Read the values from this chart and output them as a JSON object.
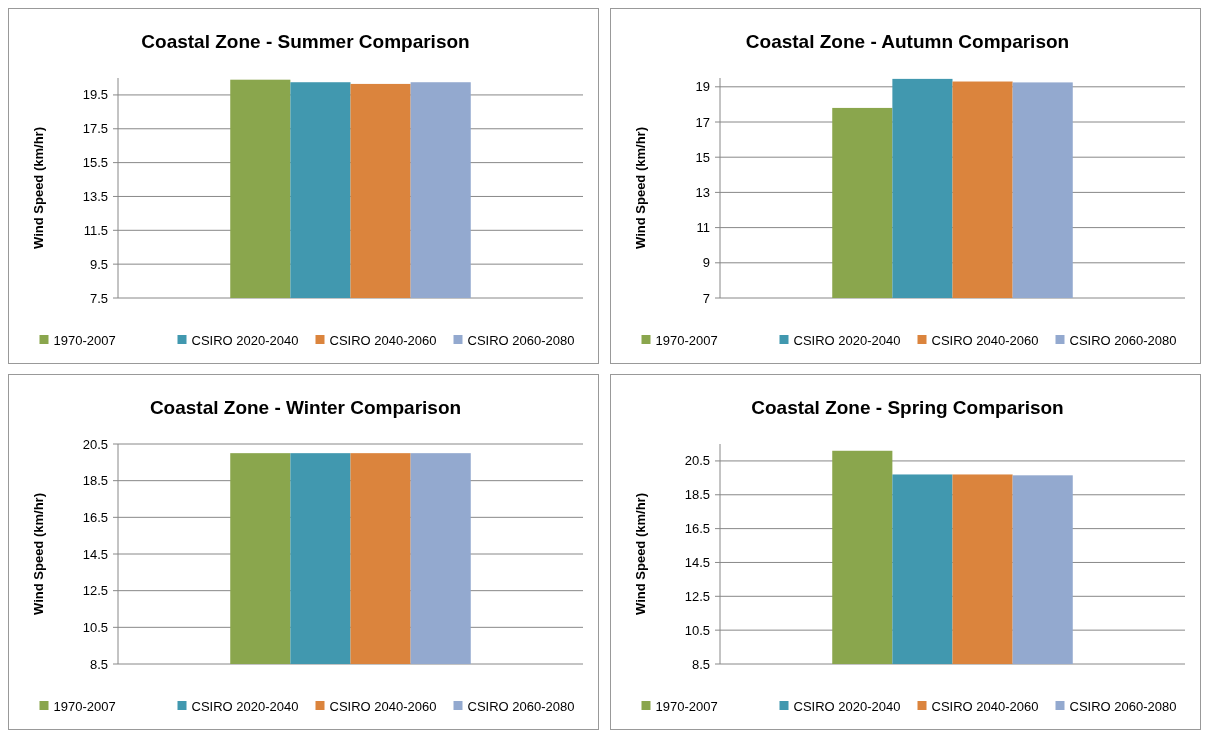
{
  "chart_data": [
    {
      "type": "bar",
      "title": "Coastal Zone - Summer Comparison",
      "ylabel": "Wind Speed (km/hr)",
      "categories": [
        null
      ],
      "series": [
        {
          "name": "1970-2007",
          "color": "#8aa64d",
          "values": [
            20.4
          ]
        },
        {
          "name": "CSIRO 2020-2040",
          "color": "#4198af",
          "values": [
            20.25
          ]
        },
        {
          "name": "CSIRO 2040-2060",
          "color": "#db843d",
          "values": [
            20.15
          ]
        },
        {
          "name": "CSIRO 2060-2080",
          "color": "#93a9cf",
          "values": [
            20.25
          ]
        }
      ],
      "ylim": [
        7.5,
        20.5
      ],
      "yticks": [
        7.5,
        9.5,
        11.5,
        13.5,
        15.5,
        17.5,
        19.5
      ],
      "grid": "y",
      "legend": "bottom"
    },
    {
      "type": "bar",
      "title": "Coastal Zone  - Autumn Comparison",
      "ylabel": "Wind Speed (km/hr)",
      "categories": [
        null
      ],
      "series": [
        {
          "name": "1970-2007",
          "color": "#8aa64d",
          "values": [
            17.8
          ]
        },
        {
          "name": "CSIRO 2020-2040",
          "color": "#4198af",
          "values": [
            19.45
          ]
        },
        {
          "name": "CSIRO 2040-2060",
          "color": "#db843d",
          "values": [
            19.3
          ]
        },
        {
          "name": "CSIRO 2060-2080",
          "color": "#93a9cf",
          "values": [
            19.25
          ]
        }
      ],
      "ylim": [
        7,
        19.5
      ],
      "yticks": [
        7,
        9,
        11,
        13,
        15,
        17,
        19
      ],
      "grid": "y",
      "legend": "bottom"
    },
    {
      "type": "bar",
      "title": "Coastal Zone  - Winter Comparison",
      "ylabel": "Wind Speed (km/hr)",
      "categories": [
        null
      ],
      "series": [
        {
          "name": "1970-2007",
          "color": "#8aa64d",
          "values": [
            20.0
          ]
        },
        {
          "name": "CSIRO 2020-2040",
          "color": "#4198af",
          "values": [
            20.0
          ]
        },
        {
          "name": "CSIRO 2040-2060",
          "color": "#db843d",
          "values": [
            20.0
          ]
        },
        {
          "name": "CSIRO 2060-2080",
          "color": "#93a9cf",
          "values": [
            20.0
          ]
        }
      ],
      "ylim": [
        8.5,
        20.5
      ],
      "yticks": [
        8.5,
        10.5,
        12.5,
        14.5,
        16.5,
        18.5,
        20.5
      ],
      "grid": "y",
      "legend": "bottom"
    },
    {
      "type": "bar",
      "title": "Coastal Zone  - Spring Comparison",
      "ylabel": "Wind Speed (km/hr)",
      "categories": [
        null
      ],
      "series": [
        {
          "name": "1970-2007",
          "color": "#8aa64d",
          "values": [
            21.1
          ]
        },
        {
          "name": "CSIRO 2020-2040",
          "color": "#4198af",
          "values": [
            19.7
          ]
        },
        {
          "name": "CSIRO 2040-2060",
          "color": "#db843d",
          "values": [
            19.7
          ]
        },
        {
          "name": "CSIRO 2060-2080",
          "color": "#93a9cf",
          "values": [
            19.65
          ]
        }
      ],
      "ylim": [
        8.5,
        21.5
      ],
      "yticks": [
        8.5,
        10.5,
        12.5,
        14.5,
        16.5,
        18.5,
        20.5
      ],
      "grid": "y",
      "legend": "bottom"
    }
  ]
}
